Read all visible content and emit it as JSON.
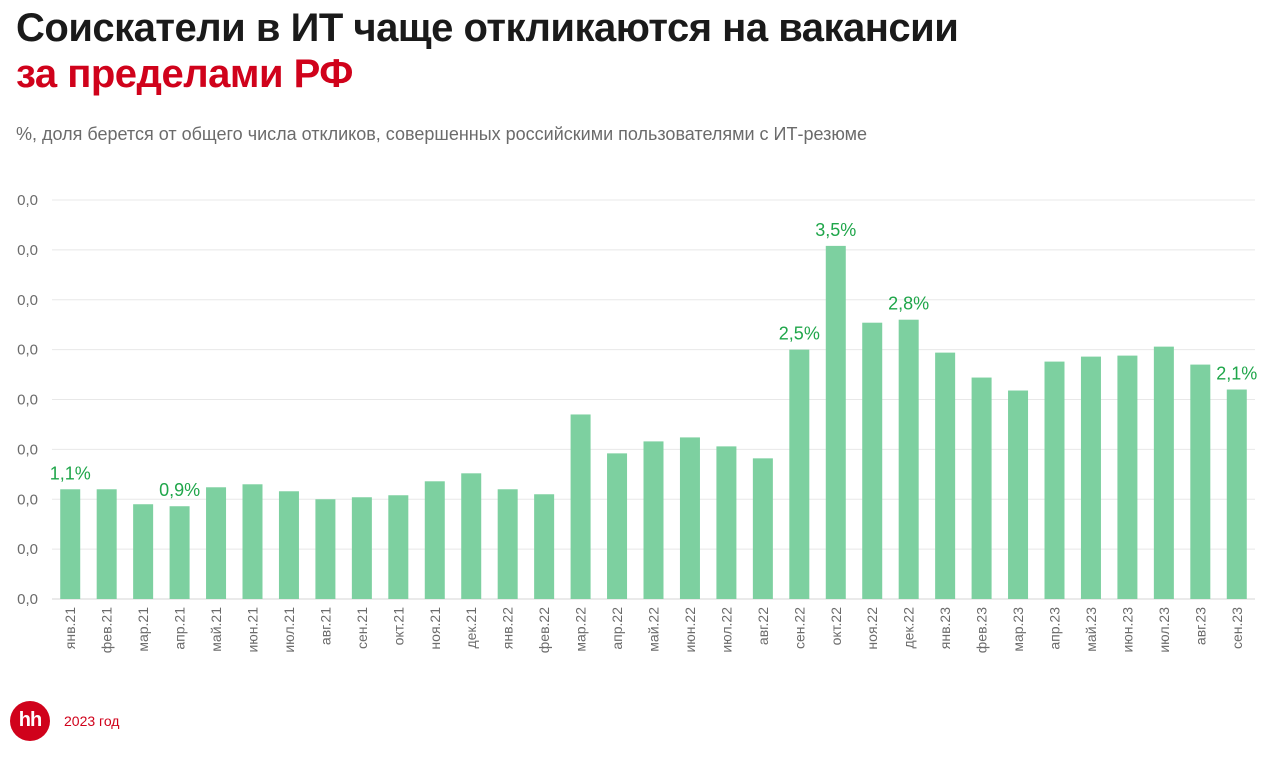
{
  "header": {
    "title_line1": "Соискатели в ИТ чаще откликаются на вакансии",
    "title_line2": "за пределами РФ",
    "subtitle": "%, доля берется от общего числа откликов, совершенных российскими пользователями с ИТ-резюме"
  },
  "footer": {
    "logo_text": "hh",
    "year": "2023 год"
  },
  "colors": {
    "bar": "#7dd0a0",
    "label": "#1fa64a",
    "grid": "#e8e8e8",
    "axis_text": "#6b6b6b",
    "brand": "#d0021b"
  },
  "chart_data": {
    "type": "bar",
    "ylim": [
      0,
      4
    ],
    "ytick_labels": [
      "0,0",
      "0,0",
      "0,0",
      "0,0",
      "0,0",
      "0,0",
      "0,0",
      "0,0",
      "0,0"
    ],
    "grid": true,
    "categories": [
      "янв.21",
      "фев.21",
      "мар.21",
      "апр.21",
      "май.21",
      "июн.21",
      "июл.21",
      "авг.21",
      "сен.21",
      "окт.21",
      "ноя.21",
      "дек.21",
      "янв.22",
      "фев.22",
      "мар.22",
      "апр.22",
      "май.22",
      "июн.22",
      "июл.22",
      "авг.22",
      "сен.22",
      "окт.22",
      "ноя.22",
      "дек.22",
      "янв.23",
      "фев.23",
      "мар.23",
      "апр.23",
      "май.23",
      "июн.23",
      "июл.23",
      "авг.23",
      "сен.23"
    ],
    "values": [
      1.1,
      1.1,
      0.95,
      0.93,
      1.12,
      1.15,
      1.08,
      1.0,
      1.02,
      1.04,
      1.18,
      1.26,
      1.1,
      1.05,
      1.85,
      1.46,
      1.58,
      1.62,
      1.53,
      1.41,
      2.5,
      3.54,
      2.77,
      2.8,
      2.47,
      2.22,
      2.09,
      2.38,
      2.43,
      2.44,
      2.53,
      2.35,
      2.1
    ],
    "data_labels": [
      {
        "index": 0,
        "text": "1,1%"
      },
      {
        "index": 3,
        "text": "0,9%"
      },
      {
        "index": 20,
        "text": "2,5%"
      },
      {
        "index": 21,
        "text": "3,5%"
      },
      {
        "index": 23,
        "text": "2,8%"
      },
      {
        "index": 32,
        "text": "2,1%"
      }
    ]
  }
}
